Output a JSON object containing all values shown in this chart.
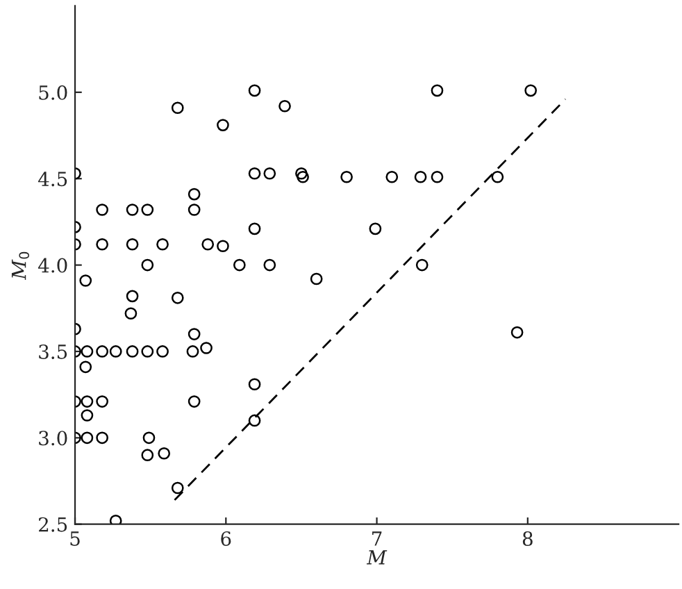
{
  "chart_data": {
    "type": "scatter",
    "xlabel": "M",
    "ylabel": "M$_{0}$",
    "xlim": [
      5,
      9
    ],
    "xticks": [
      5,
      6,
      7,
      8
    ],
    "ylim": [
      2.5,
      5.5
    ],
    "yticks": [
      {
        "value": 2.5,
        "label": "2.5"
      },
      {
        "value": 3.0,
        "label": "3.0"
      },
      {
        "value": 3.5,
        "label": "3.5"
      },
      {
        "value": 4.0,
        "label": "4.0"
      },
      {
        "value": 4.5,
        "label": "4.5"
      },
      {
        "value": 5.0,
        "label": "5.0"
      }
    ],
    "grid": false,
    "legend": false,
    "series": [
      {
        "marker": "circle",
        "color": "#000000",
        "x": [
          5.0,
          5.0,
          5.0,
          5.0,
          5.0,
          5.0,
          5.0,
          5.08,
          5.18,
          5.07,
          5.07,
          5.08,
          5.08,
          5.08,
          5.18,
          5.18,
          5.18,
          5.18,
          5.27,
          5.27,
          5.38,
          5.37,
          5.38,
          5.38,
          5.38,
          5.48,
          5.48,
          5.48,
          5.48,
          5.49,
          5.58,
          5.59,
          5.58,
          5.68,
          5.68,
          5.68,
          5.78,
          5.79,
          5.79,
          5.79,
          5.79,
          5.88,
          5.87,
          5.98,
          5.98,
          6.09,
          6.19,
          6.19,
          6.19,
          6.19,
          6.19,
          6.29,
          6.29,
          6.39,
          6.5,
          6.51,
          6.6,
          6.8,
          6.99,
          7.1,
          7.29,
          7.3,
          7.4,
          7.4,
          7.8,
          7.93,
          8.02
        ],
        "values": [
          4.53,
          4.22,
          4.12,
          3.63,
          3.5,
          3.21,
          3.0,
          3.0,
          3.0,
          3.91,
          3.41,
          3.5,
          3.21,
          3.13,
          3.21,
          3.5,
          4.12,
          4.32,
          3.5,
          2.52,
          3.5,
          3.72,
          3.82,
          4.12,
          4.32,
          3.5,
          4.32,
          4.0,
          2.9,
          3.0,
          3.5,
          2.91,
          4.12,
          2.71,
          4.91,
          3.81,
          3.5,
          3.6,
          3.21,
          4.41,
          4.32,
          4.12,
          3.52,
          4.81,
          4.11,
          4.0,
          5.01,
          4.53,
          4.21,
          3.31,
          3.1,
          4.53,
          4.0,
          4.92,
          4.53,
          4.51,
          3.92,
          4.51,
          4.21,
          4.51,
          4.51,
          4.0,
          5.01,
          4.51,
          4.51,
          3.61,
          5.01
        ]
      },
      {
        "type": "line",
        "line_style": "dashed",
        "color": "#000000",
        "x": [
          5.66,
          8.25
        ],
        "values": [
          2.64,
          4.96
        ]
      }
    ]
  }
}
